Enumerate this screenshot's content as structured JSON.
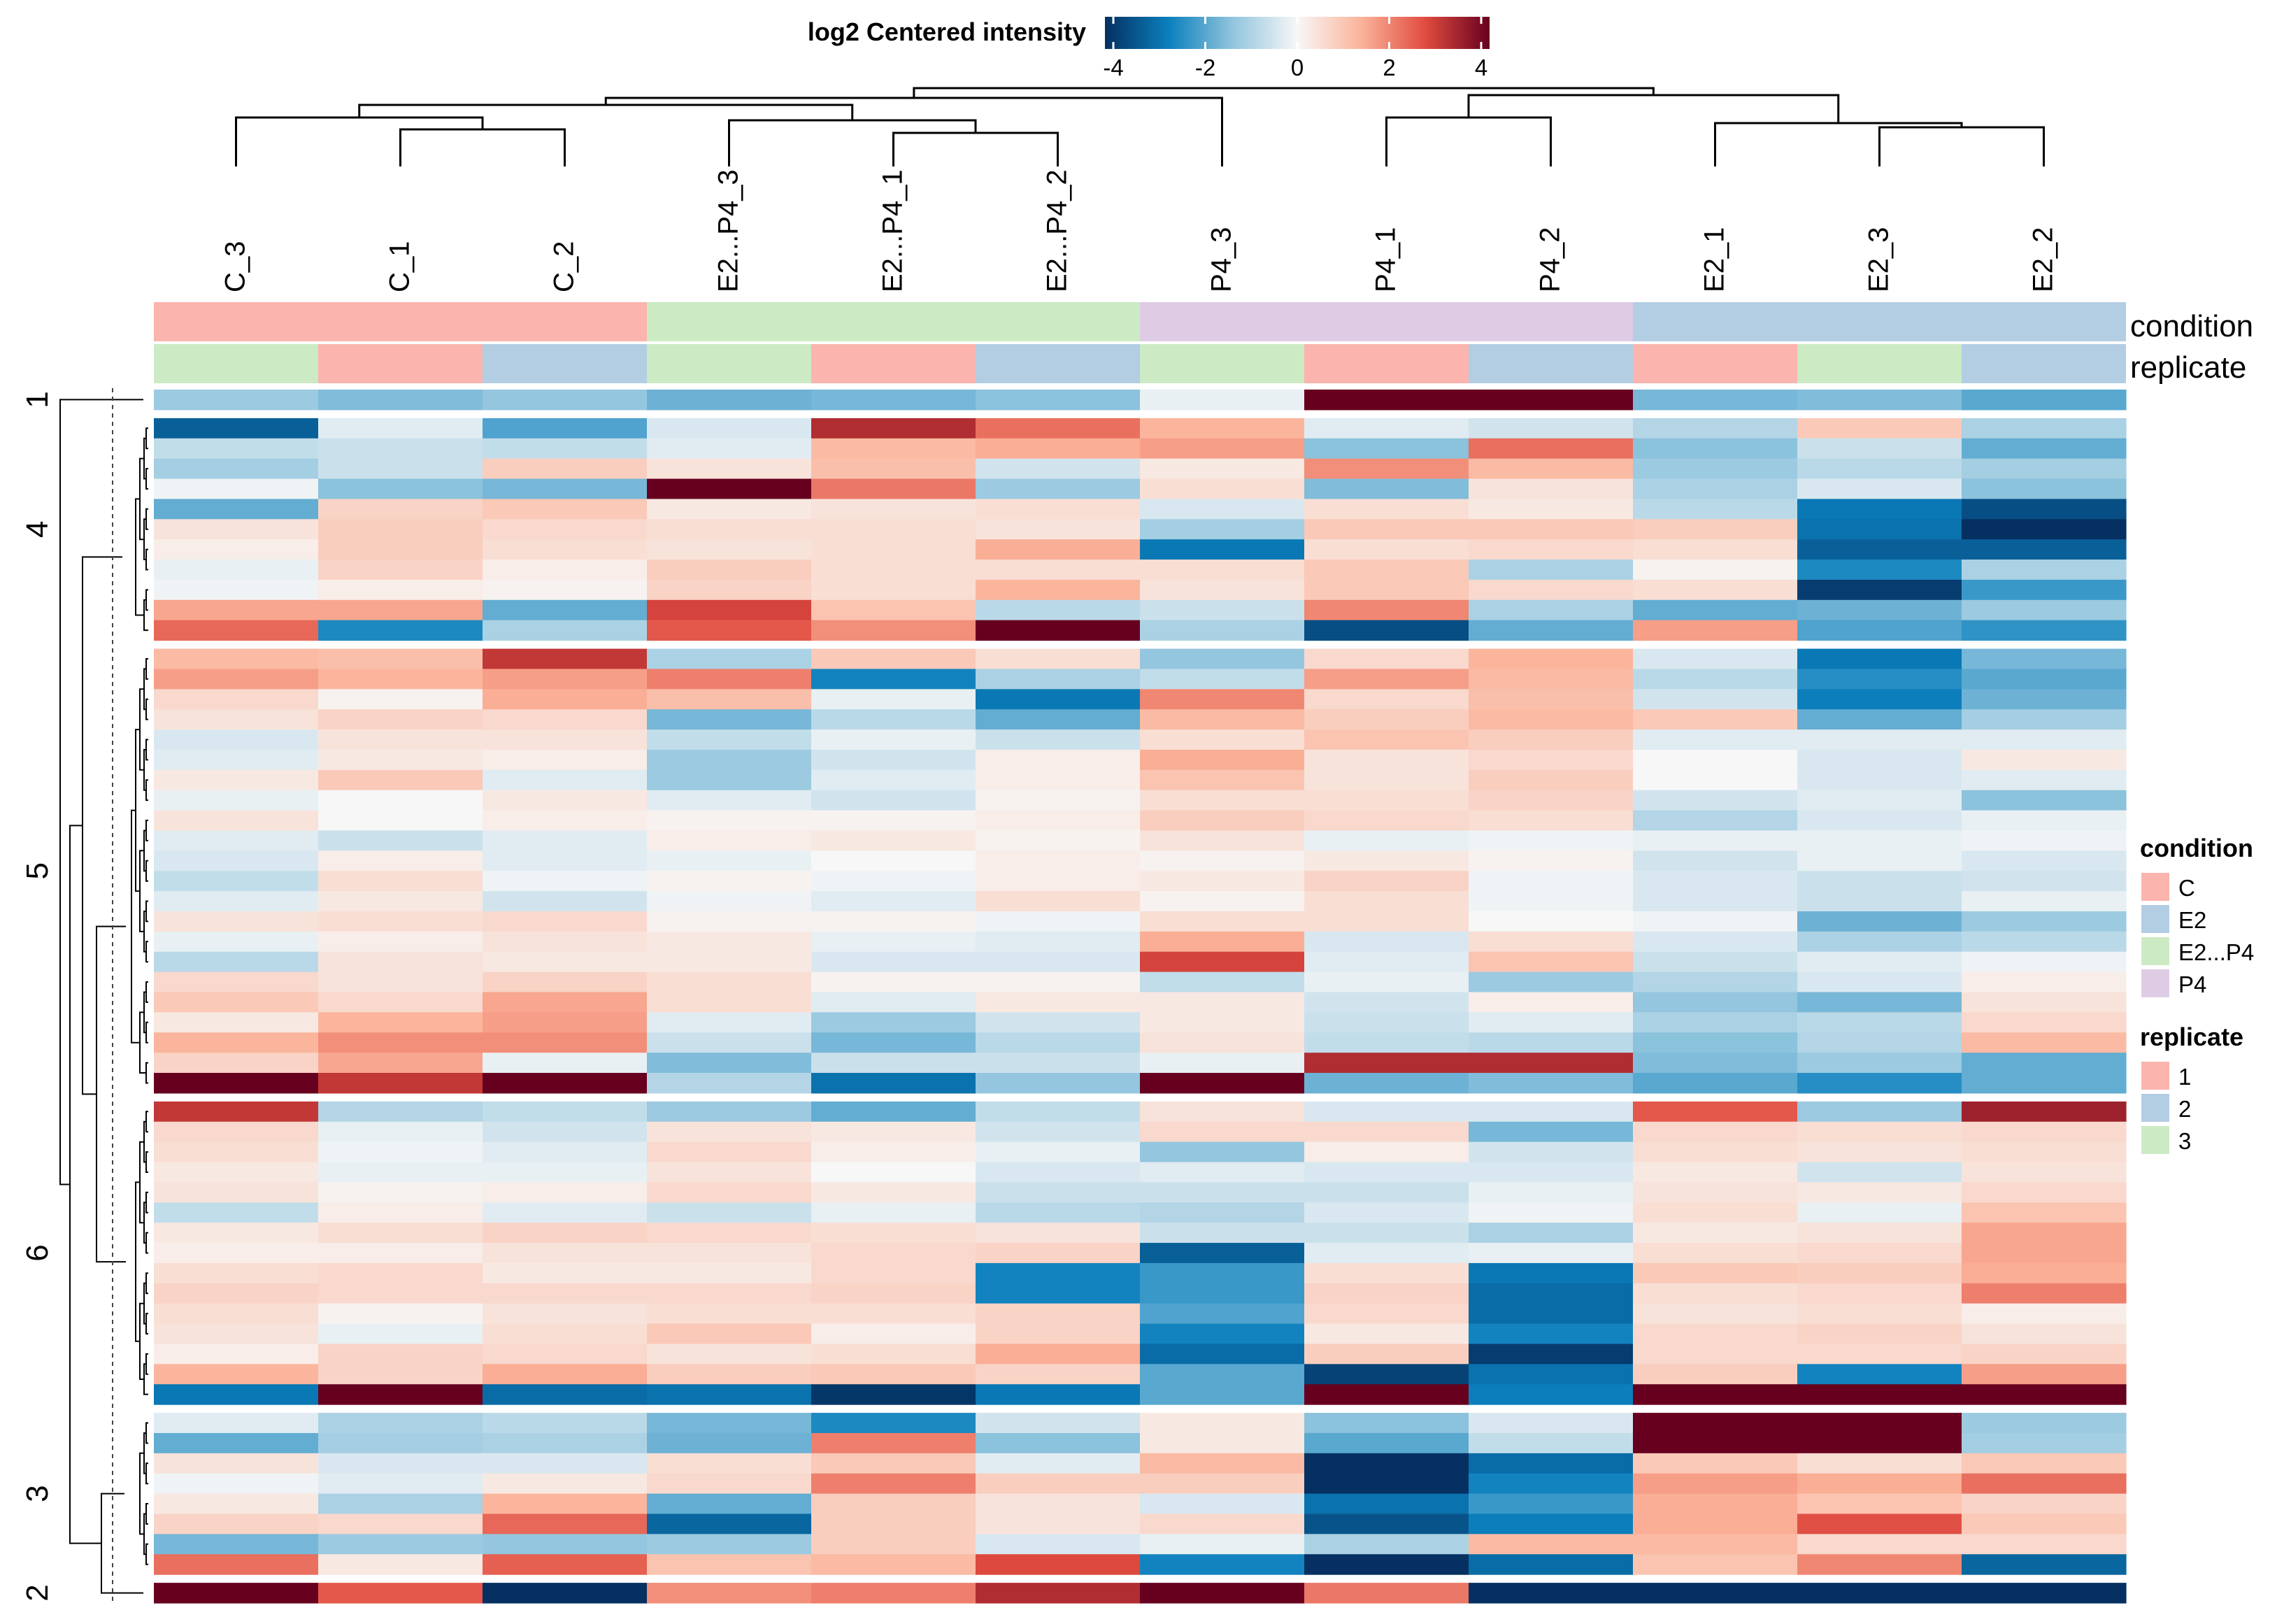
{
  "chart_data": {
    "type": "heatmap",
    "title": "",
    "colorbar": {
      "title": "log2 Centered intensity",
      "min": -4,
      "max": 4,
      "ticks": [
        "-4",
        "-2",
        "0",
        "2",
        "4"
      ],
      "stops": [
        "#053061",
        "#0b80bd",
        "#92c5de",
        "#f7f7f7",
        "#fbb39a",
        "#e04b3f",
        "#67001f"
      ]
    },
    "columns": [
      "C_3",
      "C_1",
      "C_2",
      "E2...P4_3",
      "E2...P4_1",
      "E2...P4_2",
      "P4_3",
      "P4_1",
      "P4_2",
      "E2_1",
      "E2_3",
      "E2_2"
    ],
    "annotations": {
      "condition": {
        "label": "condition",
        "values": [
          "C",
          "C",
          "C",
          "E2...P4",
          "E2...P4",
          "E2...P4",
          "P4",
          "P4",
          "P4",
          "E2",
          "E2",
          "E2"
        ]
      },
      "replicate": {
        "label": "replicate",
        "values": [
          "3",
          "1",
          "2",
          "3",
          "1",
          "2",
          "3",
          "1",
          "2",
          "1",
          "3",
          "2"
        ]
      }
    },
    "legends": {
      "condition": {
        "title": "condition",
        "items": [
          {
            "label": "C",
            "color": "#fbb4ae"
          },
          {
            "label": "E2",
            "color": "#b3cde3"
          },
          {
            "label": "E2...P4",
            "color": "#ccebc5"
          },
          {
            "label": "P4",
            "color": "#decbe4"
          }
        ]
      },
      "replicate": {
        "title": "replicate",
        "items": [
          {
            "label": "1",
            "color": "#fbb4ae"
          },
          {
            "label": "2",
            "color": "#b3cde3"
          },
          {
            "label": "3",
            "color": "#ccebc5"
          }
        ]
      }
    },
    "row_groups": [
      {
        "label": "1",
        "rows": [
          [
            -1.2,
            -1.5,
            -1.3,
            -1.7,
            -1.6,
            -1.4,
            -0.2,
            4.0,
            4.0,
            -1.6,
            -1.5,
            -1.9
          ]
        ]
      },
      {
        "label": "4",
        "rows": [
          [
            -3.2,
            -0.3,
            -2.0,
            -0.4,
            3.2,
            2.2,
            1.3,
            -0.3,
            -0.5,
            -0.9,
            0.9,
            -1.0
          ],
          [
            -0.7,
            -0.6,
            -0.7,
            -0.3,
            1.2,
            1.4,
            1.6,
            -1.4,
            2.2,
            -1.4,
            -0.6,
            -1.8
          ],
          [
            -1.1,
            -0.6,
            0.8,
            0.4,
            1.1,
            -0.5,
            0.3,
            1.8,
            1.2,
            -1.2,
            -0.8,
            -1.1
          ],
          [
            -0.1,
            -1.4,
            -1.6,
            4.0,
            2.1,
            -1.2,
            0.5,
            -1.5,
            0.4,
            -1.0,
            -0.4,
            -1.4
          ],
          [
            -1.8,
            0.7,
            0.9,
            0.3,
            0.4,
            0.5,
            -0.4,
            0.5,
            0.3,
            -0.8,
            -2.8,
            -3.5
          ],
          [
            0.4,
            0.8,
            0.6,
            0.5,
            0.5,
            0.4,
            -1.1,
            0.9,
            0.9,
            0.8,
            -2.9,
            -4.0
          ],
          [
            0.2,
            0.8,
            0.5,
            0.4,
            0.5,
            1.4,
            -2.8,
            0.5,
            0.6,
            0.5,
            -3.2,
            -3.2
          ],
          [
            -0.2,
            0.7,
            0.2,
            0.8,
            0.5,
            0.5,
            0.5,
            0.9,
            -1.0,
            0.1,
            -2.5,
            -1.0
          ],
          [
            -0.1,
            0.2,
            0.1,
            0.7,
            0.5,
            1.3,
            0.4,
            0.9,
            0.6,
            0.5,
            -3.8,
            -2.2
          ],
          [
            1.5,
            1.5,
            -1.8,
            2.8,
            1.0,
            -0.8,
            -0.6,
            1.9,
            -1.0,
            -1.8,
            -1.7,
            -1.2
          ],
          [
            2.3,
            -2.5,
            -1.0,
            2.5,
            1.8,
            4.0,
            -1.0,
            -3.5,
            -1.8,
            1.6,
            -2.0,
            -2.3
          ]
        ]
      },
      {
        "label": "5",
        "rows": [
          [
            1.2,
            1.1,
            3.0,
            -1.0,
            0.9,
            0.5,
            -1.3,
            0.6,
            1.3,
            -0.4,
            -2.8,
            -1.6
          ],
          [
            1.6,
            1.3,
            1.6,
            2.0,
            -2.6,
            -1.0,
            -0.7,
            1.6,
            1.2,
            -0.8,
            -2.4,
            -1.9
          ],
          [
            0.6,
            0.1,
            1.4,
            1.1,
            -0.2,
            -2.8,
            1.9,
            0.6,
            1.1,
            -0.5,
            -2.7,
            -1.7
          ],
          [
            0.4,
            0.7,
            0.6,
            -1.6,
            -0.8,
            -1.8,
            1.2,
            0.8,
            1.2,
            0.9,
            -1.8,
            -1.1
          ],
          [
            -0.4,
            0.4,
            0.4,
            -0.7,
            -0.2,
            -0.6,
            0.5,
            1.0,
            0.8,
            -0.3,
            -0.3,
            -0.3
          ],
          [
            -0.3,
            0.3,
            0.2,
            -1.2,
            -0.5,
            0.2,
            1.4,
            0.4,
            0.6,
            0.0,
            -0.4,
            0.3
          ],
          [
            0.3,
            0.9,
            -0.3,
            -1.2,
            -0.3,
            0.2,
            1.0,
            0.4,
            0.8,
            0.0,
            -0.4,
            -0.3
          ],
          [
            -0.2,
            0.0,
            0.3,
            -0.3,
            -0.5,
            0.1,
            0.5,
            0.5,
            0.7,
            -0.5,
            -0.3,
            -1.4
          ],
          [
            0.4,
            0.0,
            0.2,
            0.1,
            0.1,
            0.2,
            0.8,
            0.6,
            0.5,
            -0.9,
            -0.4,
            -0.2
          ],
          [
            -0.3,
            -0.6,
            -0.3,
            0.2,
            0.3,
            0.1,
            0.4,
            -0.2,
            -0.1,
            -0.2,
            -0.2,
            -0.1
          ],
          [
            -0.4,
            0.2,
            -0.3,
            -0.2,
            0.0,
            0.2,
            0.1,
            0.3,
            0.1,
            -0.5,
            -0.2,
            -0.4
          ],
          [
            -0.7,
            0.5,
            -0.1,
            0.1,
            -0.1,
            0.2,
            0.3,
            0.7,
            -0.1,
            -0.4,
            -0.6,
            -0.5
          ],
          [
            -0.3,
            0.3,
            -0.5,
            -0.1,
            -0.3,
            0.5,
            0.1,
            0.5,
            -0.1,
            -0.4,
            -0.6,
            -0.2
          ],
          [
            0.4,
            0.5,
            0.6,
            0.1,
            0.1,
            -0.1,
            0.5,
            0.5,
            0.0,
            -0.1,
            -1.7,
            -1.2
          ],
          [
            -0.2,
            0.2,
            0.4,
            0.3,
            -0.2,
            -0.3,
            1.4,
            -0.4,
            0.5,
            -0.4,
            -1.0,
            -0.8
          ],
          [
            -0.8,
            0.4,
            0.3,
            0.3,
            -0.4,
            -0.4,
            2.8,
            -0.3,
            1.0,
            -0.6,
            -0.3,
            -0.1
          ],
          [
            0.6,
            0.4,
            0.7,
            0.5,
            0.1,
            0.1,
            -0.7,
            -0.2,
            -1.2,
            -0.9,
            -0.4,
            0.2
          ],
          [
            0.9,
            0.6,
            1.5,
            0.5,
            -0.3,
            0.3,
            0.3,
            -0.5,
            0.2,
            -1.3,
            -1.6,
            0.4
          ],
          [
            0.3,
            1.3,
            1.6,
            -0.3,
            -1.2,
            -0.5,
            0.3,
            -0.6,
            -0.3,
            -1.0,
            -0.8,
            0.6
          ],
          [
            1.3,
            1.8,
            1.8,
            -0.6,
            -1.6,
            -0.8,
            0.4,
            -0.7,
            -0.8,
            -1.4,
            -0.9,
            1.2
          ],
          [
            0.7,
            1.5,
            -0.2,
            -1.5,
            -0.6,
            -0.6,
            -0.2,
            3.2,
            3.2,
            -1.5,
            -1.2,
            -1.8
          ],
          [
            4.0,
            3.0,
            4.0,
            -0.9,
            -2.9,
            -1.3,
            4.0,
            -1.7,
            -1.5,
            -1.9,
            -2.4,
            -1.8
          ]
        ]
      },
      {
        "label": "6",
        "rows": [
          [
            3.0,
            -0.9,
            -0.7,
            -1.2,
            -1.8,
            -0.7,
            0.4,
            -0.4,
            -0.4,
            2.5,
            -1.2,
            3.4
          ],
          [
            0.6,
            -0.2,
            -0.5,
            0.4,
            0.3,
            -0.5,
            0.6,
            0.6,
            -1.6,
            0.6,
            0.5,
            0.6
          ],
          [
            0.5,
            -0.1,
            -0.3,
            0.6,
            0.2,
            -0.2,
            -1.3,
            0.2,
            -0.5,
            0.5,
            0.4,
            0.5
          ],
          [
            0.3,
            -0.2,
            -0.2,
            0.4,
            0.0,
            -0.4,
            -0.3,
            -0.4,
            -0.4,
            0.3,
            -0.5,
            0.4
          ],
          [
            0.4,
            0.1,
            0.2,
            0.6,
            0.3,
            -0.6,
            -0.6,
            -0.6,
            -0.2,
            0.4,
            0.3,
            0.6
          ],
          [
            -0.7,
            0.2,
            -0.3,
            -0.6,
            -0.2,
            -0.8,
            -0.9,
            -0.4,
            -0.1,
            0.5,
            -0.2,
            1.0
          ],
          [
            0.3,
            0.5,
            0.7,
            0.6,
            0.5,
            0.4,
            -0.6,
            -0.6,
            -1.0,
            0.3,
            0.4,
            1.5
          ],
          [
            0.2,
            0.2,
            0.4,
            0.4,
            0.6,
            0.7,
            -3.2,
            -0.3,
            -0.2,
            0.5,
            0.6,
            1.5
          ],
          [
            0.5,
            0.6,
            0.3,
            0.3,
            0.6,
            -2.6,
            -2.2,
            0.5,
            -2.8,
            0.9,
            0.8,
            1.4
          ],
          [
            0.7,
            0.6,
            0.6,
            0.6,
            0.7,
            -2.6,
            -2.2,
            0.7,
            -3.0,
            0.5,
            0.6,
            2.0
          ],
          [
            0.5,
            0.1,
            0.4,
            0.5,
            0.5,
            0.7,
            -2.0,
            0.6,
            -3.0,
            0.4,
            0.5,
            0.2
          ],
          [
            0.4,
            -0.2,
            0.5,
            0.9,
            0.2,
            0.7,
            -2.6,
            0.3,
            -2.6,
            0.6,
            0.7,
            0.4
          ],
          [
            0.2,
            0.7,
            0.6,
            0.4,
            0.5,
            1.4,
            -3.0,
            0.8,
            -3.8,
            0.6,
            0.6,
            0.7
          ],
          [
            1.3,
            0.7,
            1.4,
            0.8,
            0.9,
            0.7,
            -1.9,
            -3.7,
            -2.9,
            0.8,
            -2.6,
            1.6
          ],
          [
            -2.8,
            4.0,
            -3.0,
            -2.9,
            -3.9,
            -2.8,
            -1.9,
            4.0,
            -2.7,
            4.0,
            4.0,
            4.0
          ]
        ]
      },
      {
        "label": "3",
        "rows": [
          [
            -0.3,
            -1.0,
            -0.8,
            -1.6,
            -2.5,
            -0.5,
            0.3,
            -1.4,
            -0.4,
            4.0,
            4.0,
            -1.2
          ],
          [
            -1.8,
            -1.1,
            -1.0,
            -1.7,
            2.0,
            -1.4,
            0.3,
            -1.9,
            -0.7,
            4.0,
            4.0,
            -1.1
          ],
          [
            0.4,
            -0.4,
            -0.4,
            0.5,
            0.9,
            -0.3,
            1.2,
            -4.0,
            -3.0,
            0.9,
            0.5,
            0.9
          ],
          [
            -0.1,
            -0.3,
            0.3,
            0.6,
            2.0,
            0.8,
            0.8,
            -4.0,
            -2.6,
            1.6,
            1.4,
            2.2
          ],
          [
            0.3,
            -1.0,
            1.3,
            -1.8,
            0.8,
            0.4,
            -0.4,
            -2.9,
            -2.2,
            1.4,
            1.0,
            0.7
          ],
          [
            0.7,
            0.6,
            2.3,
            -3.1,
            0.8,
            0.4,
            0.6,
            -3.4,
            -2.7,
            1.4,
            2.6,
            0.9
          ],
          [
            -1.6,
            -1.2,
            -1.3,
            -1.2,
            0.8,
            -0.4,
            -0.2,
            -1.0,
            1.2,
            1.2,
            0.6,
            0.6
          ],
          [
            2.2,
            0.3,
            2.4,
            1.0,
            1.2,
            2.7,
            -2.6,
            -4.0,
            -3.0,
            1.0,
            1.9,
            -3.1
          ]
        ]
      },
      {
        "label": "2",
        "rows": [
          [
            4.0,
            2.5,
            -4.0,
            1.8,
            2.0,
            3.2,
            4.0,
            2.1,
            -4.0,
            -4.0,
            -4.0,
            -4.0
          ]
        ]
      }
    ]
  }
}
